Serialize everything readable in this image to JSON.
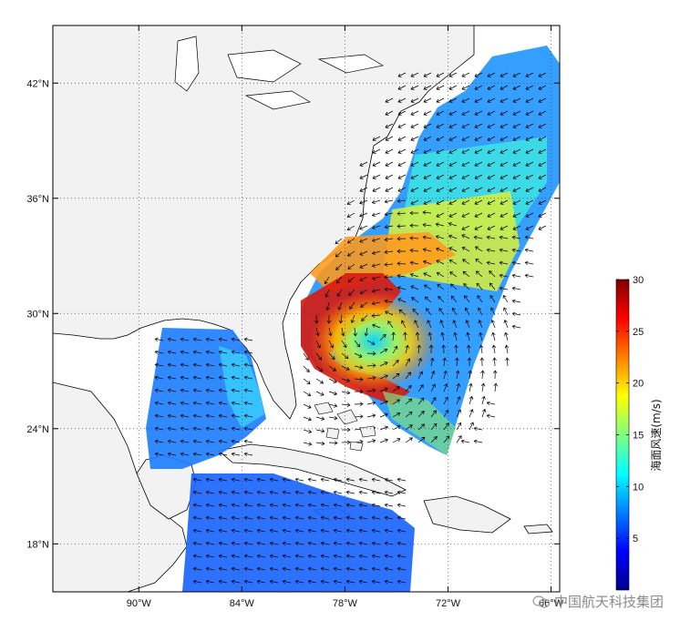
{
  "map": {
    "lat_ticks": [
      {
        "label": "18°N",
        "value": 18
      },
      {
        "label": "24°N",
        "value": 24
      },
      {
        "label": "30°N",
        "value": 30
      },
      {
        "label": "36°N",
        "value": 36
      },
      {
        "label": "42°N",
        "value": 42
      }
    ],
    "lon_ticks": [
      {
        "label": "90°W",
        "value": -90
      },
      {
        "label": "84°W",
        "value": -84
      },
      {
        "label": "78°W",
        "value": -78
      },
      {
        "label": "72°W",
        "value": -72
      },
      {
        "label": "66°W",
        "value": -66
      }
    ],
    "extent": {
      "lon_min": -95,
      "lon_max": -65.5,
      "lat_min": 15.5,
      "lat_max": 45
    },
    "hurricane_center": {
      "lon": -76.2,
      "lat": 29.0
    }
  },
  "colorbar": {
    "title": "海面风速(m/s)",
    "ticks": [
      "5",
      "10",
      "15",
      "20",
      "25",
      "30"
    ],
    "min": 0,
    "max": 30
  },
  "watermark": {
    "text": "中国航天科技集团"
  },
  "colors": {
    "land": "#f2f2f2",
    "coast": "#000000"
  }
}
